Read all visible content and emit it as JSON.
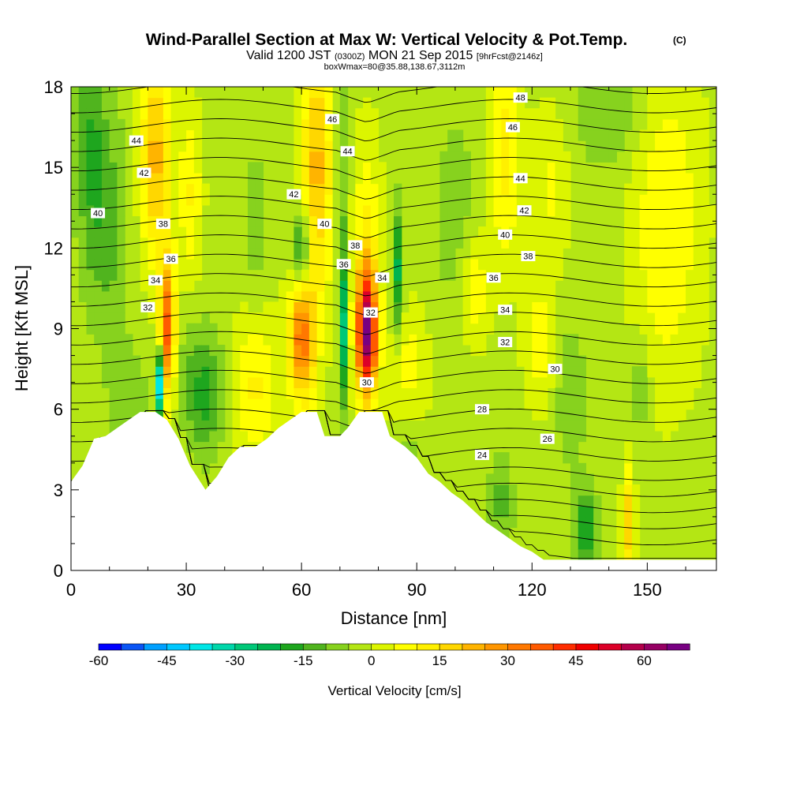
{
  "chart_data": {
    "type": "heatmap",
    "title": "Wind-Parallel Section at Max W: Vertical Velocity & Pot.Temp.",
    "title_mark": "(C)",
    "subtitle_main": "Valid 1200 JST",
    "subtitle_z": "(0300Z)",
    "subtitle_date": "MON 21 Sep 2015",
    "subtitle_fcst": "[9hrFcst@2146z]",
    "subtitle2": "boxWmax=80@35.88,138.67,3112m",
    "xlabel": "Distance [nm]",
    "ylabel": "Height [Kft MSL]",
    "xlim": [
      0,
      168
    ],
    "ylim": [
      0,
      18
    ],
    "xticks": [
      0,
      30,
      60,
      90,
      120,
      150
    ],
    "yticks": [
      0,
      3,
      6,
      9,
      12,
      15,
      18
    ],
    "colorbar": {
      "label": "Vertical Velocity [cm/s]",
      "min": -60,
      "max": 70,
      "step": 5,
      "tick_labels": [
        -60,
        -45,
        -30,
        -15,
        0,
        15,
        30,
        45,
        60
      ],
      "colors": [
        "#0000ff",
        "#0a55f5",
        "#00a0ff",
        "#00c8ff",
        "#00e6e6",
        "#00d7aa",
        "#00c878",
        "#00b450",
        "#1ea61e",
        "#50b41e",
        "#87d21e",
        "#b4e614",
        "#dcf500",
        "#ffff00",
        "#fff000",
        "#ffd700",
        "#ffb400",
        "#ff9600",
        "#ff7800",
        "#ff5a00",
        "#ff2d00",
        "#f00000",
        "#dc0028",
        "#b4004b",
        "#960064",
        "#780082"
      ]
    },
    "terrain": [
      [
        0,
        3.3
      ],
      [
        3,
        3.9
      ],
      [
        6,
        4.9
      ],
      [
        9,
        5.0
      ],
      [
        12,
        5.3
      ],
      [
        15,
        5.6
      ],
      [
        18,
        5.9
      ],
      [
        22,
        5.9
      ],
      [
        25,
        5.6
      ],
      [
        28,
        4.9
      ],
      [
        31,
        3.9
      ],
      [
        35,
        3.0
      ],
      [
        38,
        3.5
      ],
      [
        41,
        4.2
      ],
      [
        44,
        4.6
      ],
      [
        48,
        4.6
      ],
      [
        51,
        4.9
      ],
      [
        54,
        5.3
      ],
      [
        57,
        5.6
      ],
      [
        60,
        5.9
      ],
      [
        64,
        5.9
      ],
      [
        66,
        5.0
      ],
      [
        70,
        5.0
      ],
      [
        72,
        5.3
      ],
      [
        75,
        5.9
      ],
      [
        81,
        5.9
      ],
      [
        83,
        5.0
      ],
      [
        87,
        4.6
      ],
      [
        90,
        4.2
      ],
      [
        93,
        3.6
      ],
      [
        96,
        3.3
      ],
      [
        99,
        2.9
      ],
      [
        102,
        2.6
      ],
      [
        105,
        2.2
      ],
      [
        108,
        1.8
      ],
      [
        111,
        1.5
      ],
      [
        114,
        1.2
      ],
      [
        117,
        0.9
      ],
      [
        120,
        0.7
      ],
      [
        123,
        0.4
      ],
      [
        168,
        0.4
      ]
    ],
    "theta_labels": [
      {
        "x": 7,
        "y": 13.3,
        "text": "40"
      },
      {
        "x": 17,
        "y": 16.0,
        "text": "44"
      },
      {
        "x": 19,
        "y": 14.8,
        "text": "42"
      },
      {
        "x": 24,
        "y": 12.9,
        "text": "38"
      },
      {
        "x": 26,
        "y": 11.6,
        "text": "36"
      },
      {
        "x": 22,
        "y": 10.8,
        "text": "34"
      },
      {
        "x": 20,
        "y": 9.8,
        "text": "32"
      },
      {
        "x": 58,
        "y": 14.0,
        "text": "42"
      },
      {
        "x": 66,
        "y": 12.9,
        "text": "40"
      },
      {
        "x": 68,
        "y": 16.8,
        "text": "46"
      },
      {
        "x": 72,
        "y": 15.6,
        "text": "44"
      },
      {
        "x": 74,
        "y": 12.1,
        "text": "38"
      },
      {
        "x": 71,
        "y": 11.4,
        "text": "36"
      },
      {
        "x": 81,
        "y": 10.9,
        "text": "34"
      },
      {
        "x": 78,
        "y": 9.6,
        "text": "32"
      },
      {
        "x": 77,
        "y": 7.0,
        "text": "30"
      },
      {
        "x": 115,
        "y": 16.5,
        "text": "46"
      },
      {
        "x": 117,
        "y": 14.6,
        "text": "44"
      },
      {
        "x": 118,
        "y": 13.4,
        "text": "42"
      },
      {
        "x": 113,
        "y": 12.5,
        "text": "40"
      },
      {
        "x": 119,
        "y": 11.7,
        "text": "38"
      },
      {
        "x": 110,
        "y": 10.9,
        "text": "36"
      },
      {
        "x": 113,
        "y": 9.7,
        "text": "34"
      },
      {
        "x": 113,
        "y": 8.5,
        "text": "32"
      },
      {
        "x": 126,
        "y": 7.5,
        "text": "30"
      },
      {
        "x": 107,
        "y": 6.0,
        "text": "28"
      },
      {
        "x": 124,
        "y": 4.9,
        "text": "26"
      },
      {
        "x": 107,
        "y": 4.3,
        "text": "24"
      },
      {
        "x": 117,
        "y": 17.6,
        "text": "48"
      }
    ]
  }
}
